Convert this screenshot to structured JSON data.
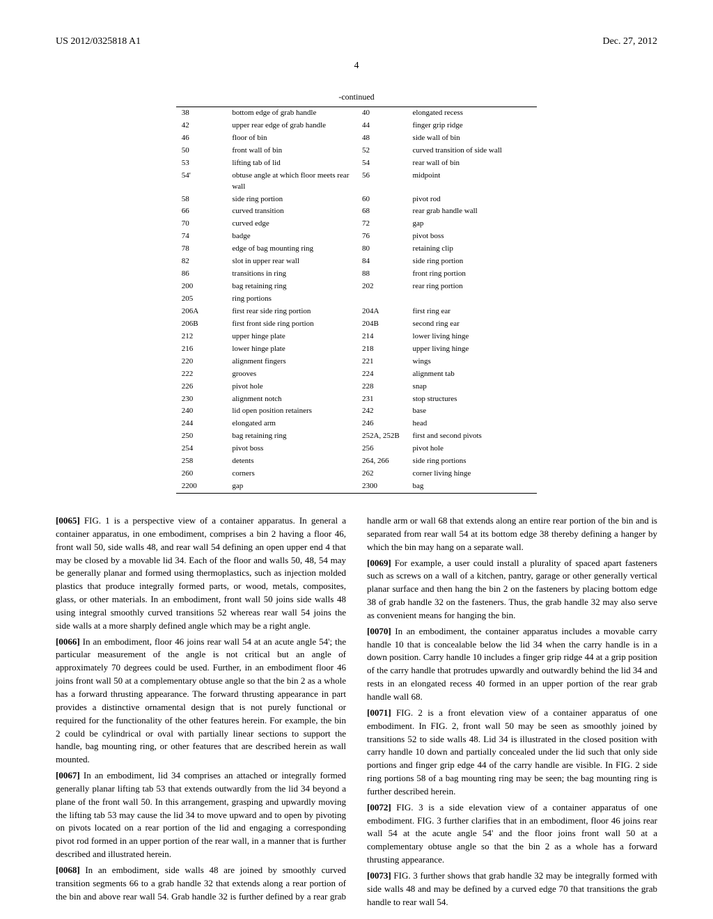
{
  "header": {
    "left": "US 2012/0325818 A1",
    "right": "Dec. 27, 2012"
  },
  "page_number": "4",
  "continued_label": "-continued",
  "table": {
    "rows": [
      [
        "38",
        "bottom edge of grab handle",
        "40",
        "elongated recess"
      ],
      [
        "42",
        "upper rear edge of grab handle",
        "44",
        "finger grip ridge"
      ],
      [
        "46",
        "floor of bin",
        "48",
        "side wall of bin"
      ],
      [
        "50",
        "front wall of bin",
        "52",
        "curved transition of side wall"
      ],
      [
        "53",
        "lifting tab of lid",
        "54",
        "rear wall of bin"
      ],
      [
        "54'",
        "obtuse angle at which floor meets rear wall",
        "56",
        "midpoint"
      ],
      [
        "58",
        "side ring portion",
        "60",
        "pivot rod"
      ],
      [
        "66",
        "curved transition",
        "68",
        "rear grab handle wall"
      ],
      [
        "70",
        "curved edge",
        "72",
        "gap"
      ],
      [
        "74",
        "badge",
        "76",
        "pivot boss"
      ],
      [
        "78",
        "edge of bag mounting ring",
        "80",
        "retaining clip"
      ],
      [
        "82",
        "slot in upper rear wall",
        "84",
        "side ring portion"
      ],
      [
        "86",
        "transitions in ring",
        "88",
        "front ring portion"
      ],
      [
        "200",
        "bag retaining ring",
        "202",
        "rear ring portion"
      ],
      [
        "205",
        "ring portions",
        "",
        ""
      ],
      [
        "206A",
        "first rear side ring portion",
        "204A",
        "first ring ear"
      ],
      [
        "206B",
        "first front side ring portion",
        "204B",
        "second ring ear"
      ],
      [
        "212",
        "upper hinge plate",
        "214",
        "lower living hinge"
      ],
      [
        "216",
        "lower hinge plate",
        "218",
        "upper living hinge"
      ],
      [
        "220",
        "alignment fingers",
        "221",
        "wings"
      ],
      [
        "222",
        "grooves",
        "224",
        "alignment tab"
      ],
      [
        "226",
        "pivot hole",
        "228",
        "snap"
      ],
      [
        "230",
        "alignment notch",
        "231",
        "stop structures"
      ],
      [
        "240",
        "lid open position retainers",
        "242",
        "base"
      ],
      [
        "244",
        "elongated arm",
        "246",
        "head"
      ],
      [
        "250",
        "bag retaining ring",
        "252A, 252B",
        "first and second pivots"
      ],
      [
        "254",
        "pivot boss",
        "256",
        "pivot hole"
      ],
      [
        "258",
        "detents",
        "264, 266",
        "side ring portions"
      ],
      [
        "260",
        "corners",
        "262",
        "corner living hinge"
      ],
      [
        "2200",
        "gap",
        "2300",
        "bag"
      ]
    ]
  },
  "paragraphs": [
    {
      "label": "[0065]",
      "text": "FIG. 1 is a perspective view of a container apparatus. In general a container apparatus, in one embodiment, comprises a bin 2 having a floor 46, front wall 50, side walls 48, and rear wall 54 defining an open upper end 4 that may be closed by a movable lid 34. Each of the floor and walls 50, 48, 54 may be generally planar and formed using thermoplastics, such as injection molded plastics that produce integrally formed parts, or wood, metals, composites, glass, or other materials. In an embodiment, front wall 50 joins side walls 48 using integral smoothly curved transitions 52 whereas rear wall 54 joins the side walls at a more sharply defined angle which may be a right angle."
    },
    {
      "label": "[0066]",
      "text": "In an embodiment, floor 46 joins rear wall 54 at an acute angle 54'; the particular measurement of the angle is not critical but an angle of approximately 70 degrees could be used. Further, in an embodiment floor 46 joins front wall 50 at a complementary obtuse angle so that the bin 2 as a whole has a forward thrusting appearance. The forward thrusting appearance in part provides a distinctive ornamental design that is not purely functional or required for the functionality of the other features herein. For example, the bin 2 could be cylindrical or oval with partially linear sections to support the handle, bag mounting ring, or other features that are described herein as wall mounted."
    },
    {
      "label": "[0067]",
      "text": "In an embodiment, lid 34 comprises an attached or integrally formed generally planar lifting tab 53 that extends outwardly from the lid 34 beyond a plane of the front wall 50. In this arrangement, grasping and upwardly moving the lifting tab 53 may cause the lid 34 to move upward and to open by pivoting on pivots located on a rear portion of the lid and engaging a corresponding pivot rod formed in an upper portion of the rear wall, in a manner that is further described and illustrated herein."
    },
    {
      "label": "[0068]",
      "text": "In an embodiment, side walls 48 are joined by smoothly curved transition segments 66 to a grab handle 32 that extends along a rear portion of the bin and above rear wall 54. Grab handle 32 is further defined by a rear grab handle arm or wall 68 that extends along an entire rear portion of the bin and is separated from rear wall 54 at its bottom edge 38 thereby defining a hanger by which the bin may hang on a separate wall."
    },
    {
      "label": "[0069]",
      "text": "For example, a user could install a plurality of spaced apart fasteners such as screws on a wall of a kitchen, pantry, garage or other generally vertical planar surface and then hang the bin 2 on the fasteners by placing bottom edge 38 of grab handle 32 on the fasteners. Thus, the grab handle 32 may also serve as convenient means for hanging the bin."
    },
    {
      "label": "[0070]",
      "text": "In an embodiment, the container apparatus includes a movable carry handle 10 that is concealable below the lid 34 when the carry handle is in a down position. Carry handle 10 includes a finger grip ridge 44 at a grip position of the carry handle that protrudes upwardly and outwardly behind the lid 34 and rests in an elongated recess 40 formed in an upper portion of the rear grab handle wall 68."
    },
    {
      "label": "[0071]",
      "text": "FIG. 2 is a front elevation view of a container apparatus of one embodiment. In FIG. 2, front wall 50 may be seen as smoothly joined by transitions 52 to side walls 48. Lid 34 is illustrated in the closed position with carry handle 10 down and partially concealed under the lid such that only side portions and finger grip edge 44 of the carry handle are visible. In FIG. 2 side ring portions 58 of a bag mounting ring may be seen; the bag mounting ring is further described herein."
    },
    {
      "label": "[0072]",
      "text": "FIG. 3 is a side elevation view of a container apparatus of one embodiment. FIG. 3 further clarifies that in an embodiment, floor 46 joins rear wall 54 at the acute angle 54' and the floor joins front wall 50 at a complementary obtuse angle so that the bin 2 as a whole has a forward thrusting appearance."
    },
    {
      "label": "[0073]",
      "text": "FIG. 3 further shows that grab handle 32 may be integrally formed with side walls 48 and may be defined by a curved edge 70 that transitions the grab handle to rear wall 54."
    }
  ]
}
